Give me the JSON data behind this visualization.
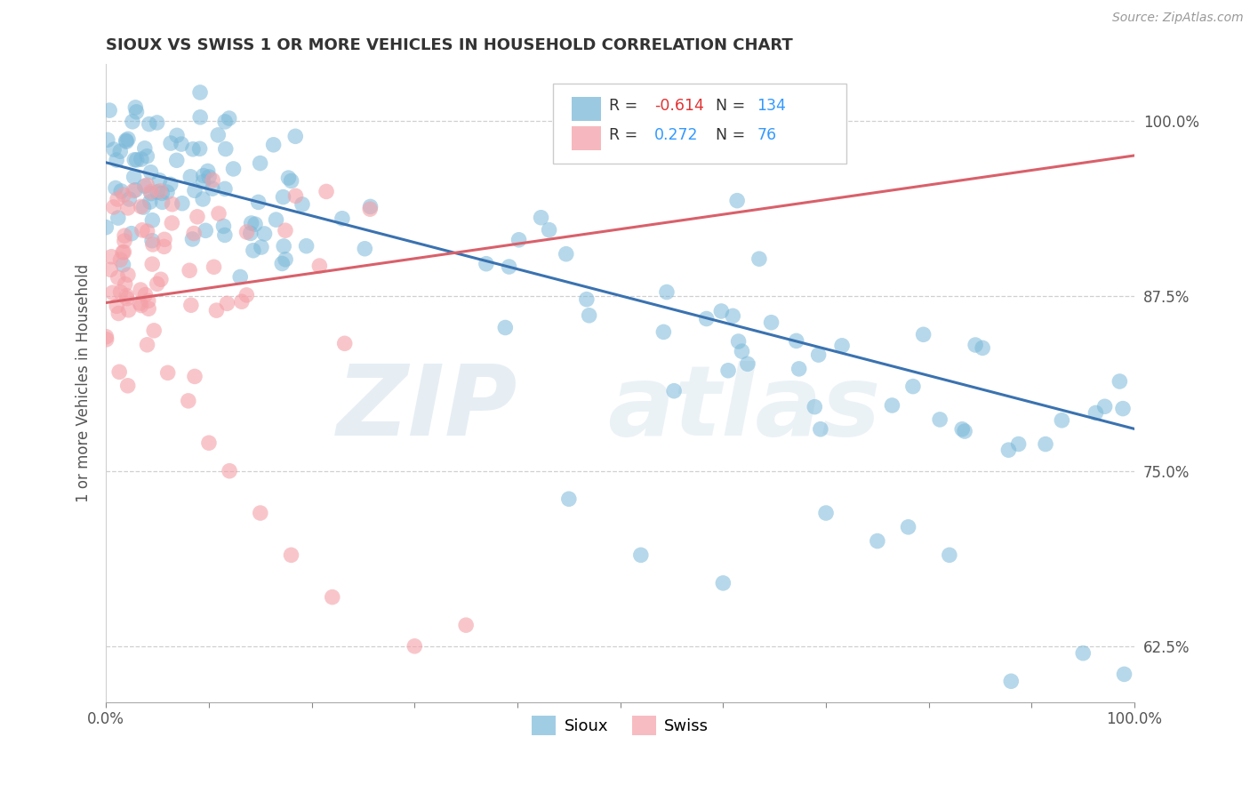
{
  "title": "SIOUX VS SWISS 1 OR MORE VEHICLES IN HOUSEHOLD CORRELATION CHART",
  "source": "Source: ZipAtlas.com",
  "ylabel": "1 or more Vehicles in Household",
  "xlim": [
    0.0,
    1.0
  ],
  "ylim": [
    0.585,
    1.04
  ],
  "ytick_positions": [
    0.625,
    0.75,
    0.875,
    1.0
  ],
  "yticklabels": [
    "62.5%",
    "75.0%",
    "87.5%",
    "100.0%"
  ],
  "legend_sioux_r": "-0.614",
  "legend_sioux_n": "134",
  "legend_swiss_r": "0.272",
  "legend_swiss_n": "76",
  "sioux_color": "#7ab8d9",
  "swiss_color": "#f4a0a8",
  "sioux_line_color": "#3a72b0",
  "swiss_line_color": "#d9606a",
  "background_color": "#ffffff",
  "sioux_line_start_y": 0.97,
  "sioux_line_end_y": 0.78,
  "swiss_line_start_y": 0.87,
  "swiss_line_end_y": 0.975
}
